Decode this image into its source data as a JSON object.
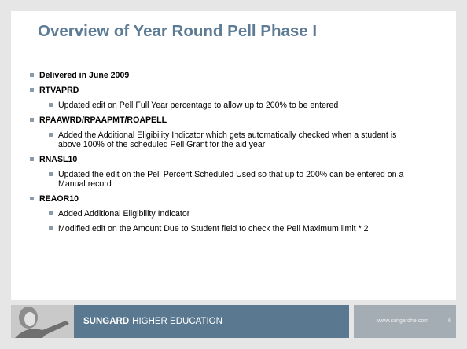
{
  "title": "Overview of Year Round Pell Phase I",
  "bullets": [
    {
      "level": 1,
      "text": "Delivered in June 2009"
    },
    {
      "level": 1,
      "text": "RTVAPRD"
    },
    {
      "level": 2,
      "text": "Updated edit on Pell Full Year percentage to allow up to 200% to be entered"
    },
    {
      "level": 1,
      "text": "RPAAWRD/RPAAPMT/ROAPELL"
    },
    {
      "level": 2,
      "text": "Added the Additional Eligibility Indicator which gets automatically checked when a student is above 100% of the scheduled Pell Grant for the aid year"
    },
    {
      "level": 1,
      "text": "RNASL10"
    },
    {
      "level": 2,
      "text": "Updated the edit on the Pell Percent Scheduled Used so that up to 200% can be entered on a Manual record"
    },
    {
      "level": 1,
      "text": "REAOR10"
    },
    {
      "level": 2,
      "text": "Added Additional Eligibility Indicator"
    },
    {
      "level": 2,
      "text": "Modified edit on the Amount Due to Student field to check the Pell Maximum limit * 2"
    }
  ],
  "footer": {
    "brand": "SUNGARD",
    "division": "HIGHER EDUCATION",
    "url": "www.sungardhe.com",
    "page": "6"
  }
}
